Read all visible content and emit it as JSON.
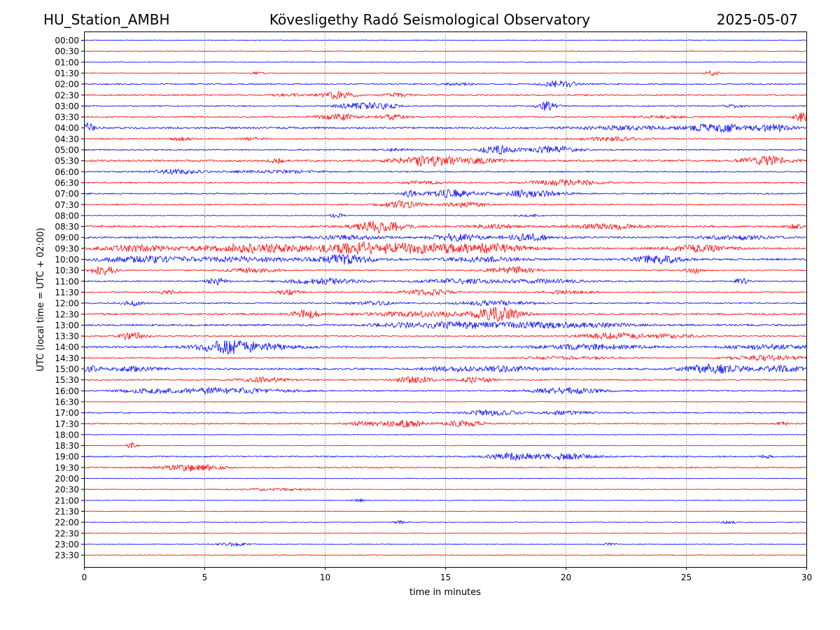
{
  "chart_data": {
    "type": "line",
    "station": "HU_Station_AMBH",
    "title": "Kövesligethy Radó Seismological Observatory",
    "date": "2025-05-07",
    "xlabel": "time in minutes",
    "ylabel": "UTC (local time = UTC + 02:00)",
    "xlim": [
      0,
      30
    ],
    "x_ticks": [
      0,
      5,
      10,
      15,
      20,
      25,
      30
    ],
    "x_tick_labels": [
      "0",
      "5",
      "10",
      "15",
      "20",
      "25",
      "30"
    ],
    "vertical_grid": "dotted at every 5 minutes",
    "trace_colors": [
      "#0000ff",
      "#ff0000"
    ],
    "traces": [
      {
        "label": "00:00",
        "activity": "low",
        "bursts": []
      },
      {
        "label": "00:30",
        "activity": "low",
        "bursts": []
      },
      {
        "label": "01:00",
        "activity": "low",
        "bursts": []
      },
      {
        "label": "01:30",
        "activity": "low",
        "bursts": [
          [
            7.2,
            0.3,
            0.2
          ],
          [
            26.1,
            0.3,
            0.4
          ]
        ]
      },
      {
        "label": "02:00",
        "activity": "medium",
        "bursts": [
          [
            19.8,
            0.7,
            0.6
          ],
          [
            15.5,
            0.6,
            0.2
          ]
        ]
      },
      {
        "label": "02:30",
        "activity": "medium",
        "bursts": [
          [
            10.5,
            0.7,
            0.6
          ],
          [
            13.0,
            0.6,
            0.3
          ],
          [
            8.5,
            0.6,
            0.2
          ]
        ]
      },
      {
        "label": "03:00",
        "activity": "medium",
        "bursts": [
          [
            11.5,
            0.9,
            0.6
          ],
          [
            12.5,
            0.5,
            0.4
          ],
          [
            19.2,
            0.4,
            0.8
          ],
          [
            27.0,
            0.4,
            0.3
          ]
        ]
      },
      {
        "label": "03:30",
        "activity": "medium",
        "bursts": [
          [
            10.5,
            0.8,
            0.6
          ],
          [
            12.8,
            0.6,
            0.4
          ],
          [
            29.8,
            0.3,
            0.9
          ],
          [
            24.0,
            1.0,
            0.2
          ]
        ]
      },
      {
        "label": "04:00",
        "activity": "high",
        "bursts": [
          [
            0.1,
            0.3,
            0.9
          ],
          [
            26.3,
            1.0,
            0.8
          ],
          [
            28.6,
            0.8,
            0.6
          ],
          [
            22.5,
            2.0,
            0.3
          ]
        ]
      },
      {
        "label": "04:30",
        "activity": "medium",
        "bursts": [
          [
            4.0,
            0.4,
            0.3
          ],
          [
            22.0,
            1.5,
            0.3
          ],
          [
            7.0,
            0.5,
            0.2
          ]
        ]
      },
      {
        "label": "05:00",
        "activity": "medium",
        "bursts": [
          [
            17.2,
            0.7,
            0.7
          ],
          [
            19.5,
            1.0,
            0.6
          ],
          [
            13.0,
            0.6,
            0.2
          ]
        ]
      },
      {
        "label": "05:30",
        "activity": "high",
        "bursts": [
          [
            14.3,
            1.3,
            0.9
          ],
          [
            28.3,
            0.9,
            0.8
          ],
          [
            16.5,
            0.8,
            0.4
          ],
          [
            8.0,
            0.3,
            0.4
          ]
        ]
      },
      {
        "label": "06:00",
        "activity": "medium",
        "bursts": [
          [
            3.8,
            1.0,
            0.4
          ],
          [
            8.0,
            2.0,
            0.2
          ]
        ]
      },
      {
        "label": "06:30",
        "activity": "medium",
        "bursts": [
          [
            20.0,
            1.5,
            0.5
          ],
          [
            14.0,
            1.0,
            0.2
          ]
        ]
      },
      {
        "label": "07:00",
        "activity": "medium",
        "bursts": [
          [
            15.3,
            1.0,
            0.7
          ],
          [
            18.5,
            1.3,
            0.6
          ],
          [
            13.5,
            0.3,
            0.6
          ]
        ]
      },
      {
        "label": "07:30",
        "activity": "medium",
        "bursts": [
          [
            13.2,
            0.8,
            0.6
          ],
          [
            15.8,
            0.8,
            0.4
          ]
        ]
      },
      {
        "label": "08:00",
        "activity": "low",
        "bursts": [
          [
            10.5,
            0.3,
            0.4
          ],
          [
            18.5,
            0.6,
            0.2
          ]
        ]
      },
      {
        "label": "08:30",
        "activity": "high",
        "bursts": [
          [
            12.3,
            1.0,
            1.0
          ],
          [
            21.8,
            1.5,
            0.4
          ],
          [
            17.0,
            1.0,
            0.3
          ],
          [
            29.5,
            0.4,
            0.3
          ]
        ]
      },
      {
        "label": "09:00",
        "activity": "high",
        "bursts": [
          [
            15.5,
            1.0,
            0.6
          ],
          [
            18.5,
            0.8,
            0.7
          ],
          [
            11.0,
            1.5,
            0.3
          ],
          [
            27.0,
            1.5,
            0.3
          ]
        ]
      },
      {
        "label": "09:30",
        "activity": "high",
        "bursts": [
          [
            7.0,
            2.5,
            0.7
          ],
          [
            11.5,
            1.5,
            0.6
          ],
          [
            14.0,
            3.0,
            0.8
          ],
          [
            17.0,
            1.5,
            0.5
          ],
          [
            2.0,
            1.5,
            0.5
          ],
          [
            25.5,
            1.2,
            0.6
          ]
        ]
      },
      {
        "label": "10:00",
        "activity": "high",
        "bursts": [
          [
            10.8,
            1.2,
            0.8
          ],
          [
            23.8,
            1.0,
            0.7
          ],
          [
            2.5,
            2.0,
            0.5
          ],
          [
            6.5,
            2.0,
            0.4
          ],
          [
            16.5,
            1.5,
            0.4
          ]
        ]
      },
      {
        "label": "10:30",
        "activity": "medium",
        "bursts": [
          [
            0.8,
            0.5,
            0.8
          ],
          [
            17.8,
            1.0,
            0.6
          ],
          [
            25.3,
            0.3,
            0.6
          ],
          [
            7.0,
            1.0,
            0.4
          ]
        ]
      },
      {
        "label": "11:00",
        "activity": "medium",
        "bursts": [
          [
            5.5,
            0.4,
            0.7
          ],
          [
            10.0,
            1.5,
            0.5
          ],
          [
            15.5,
            1.5,
            0.4
          ],
          [
            27.3,
            0.3,
            0.5
          ],
          [
            19.0,
            2.0,
            0.3
          ]
        ]
      },
      {
        "label": "11:30",
        "activity": "medium",
        "bursts": [
          [
            8.5,
            0.5,
            0.4
          ],
          [
            14.3,
            1.0,
            0.5
          ],
          [
            3.5,
            0.5,
            0.3
          ],
          [
            20.0,
            1.0,
            0.3
          ]
        ]
      },
      {
        "label": "12:00",
        "activity": "medium",
        "bursts": [
          [
            17.0,
            1.5,
            0.4
          ],
          [
            2.0,
            0.4,
            0.4
          ],
          [
            12.0,
            1.0,
            0.3
          ]
        ]
      },
      {
        "label": "12:30",
        "activity": "high",
        "bursts": [
          [
            17.2,
            0.9,
            1.2
          ],
          [
            9.2,
            0.6,
            0.7
          ],
          [
            14.0,
            2.0,
            0.4
          ]
        ]
      },
      {
        "label": "13:00",
        "activity": "high",
        "bursts": [
          [
            15.5,
            1.5,
            0.6
          ],
          [
            18.5,
            1.5,
            0.4
          ],
          [
            21.0,
            2.0,
            0.3
          ],
          [
            13.0,
            1.0,
            0.3
          ]
        ]
      },
      {
        "label": "13:30",
        "activity": "medium",
        "bursts": [
          [
            2.0,
            0.5,
            0.7
          ],
          [
            22.0,
            1.5,
            0.5
          ],
          [
            24.5,
            1.0,
            0.3
          ]
        ]
      },
      {
        "label": "14:00",
        "activity": "high",
        "bursts": [
          [
            6.0,
            1.3,
            1.0
          ],
          [
            7.5,
            1.5,
            0.4
          ],
          [
            21.0,
            2.0,
            0.4
          ],
          [
            28.5,
            1.5,
            0.4
          ]
        ]
      },
      {
        "label": "14:30",
        "activity": "medium",
        "bursts": [
          [
            28.5,
            1.5,
            0.4
          ],
          [
            20.0,
            2.0,
            0.2
          ]
        ]
      },
      {
        "label": "15:00",
        "activity": "high",
        "bursts": [
          [
            26.2,
            1.2,
            0.8
          ],
          [
            0.2,
            0.4,
            0.7
          ],
          [
            15.2,
            1.0,
            0.4
          ],
          [
            17.5,
            1.5,
            0.4
          ],
          [
            2.0,
            1.0,
            0.4
          ],
          [
            29.0,
            1.0,
            0.5
          ]
        ]
      },
      {
        "label": "15:30",
        "activity": "medium",
        "bursts": [
          [
            13.8,
            0.8,
            0.6
          ],
          [
            16.3,
            0.7,
            0.5
          ],
          [
            7.5,
            1.0,
            0.4
          ]
        ]
      },
      {
        "label": "16:00",
        "activity": "medium",
        "bursts": [
          [
            5.8,
            2.5,
            0.5
          ],
          [
            20.0,
            1.5,
            0.5
          ],
          [
            2.5,
            1.0,
            0.3
          ]
        ]
      },
      {
        "label": "16:30",
        "activity": "low",
        "bursts": []
      },
      {
        "label": "17:00",
        "activity": "medium",
        "bursts": [
          [
            17.0,
            1.0,
            0.5
          ],
          [
            20.0,
            1.0,
            0.3
          ]
        ]
      },
      {
        "label": "17:30",
        "activity": "medium",
        "bursts": [
          [
            13.2,
            1.0,
            0.6
          ],
          [
            15.8,
            0.8,
            0.5
          ],
          [
            11.5,
            0.6,
            0.3
          ],
          [
            29.0,
            0.2,
            0.4
          ]
        ]
      },
      {
        "label": "18:00",
        "activity": "low",
        "bursts": []
      },
      {
        "label": "18:30",
        "activity": "low",
        "bursts": [
          [
            2.0,
            0.2,
            0.6
          ]
        ]
      },
      {
        "label": "19:00",
        "activity": "medium",
        "bursts": [
          [
            17.8,
            1.0,
            0.6
          ],
          [
            20.0,
            1.2,
            0.5
          ],
          [
            28.3,
            0.2,
            0.4
          ]
        ]
      },
      {
        "label": "19:30",
        "activity": "medium",
        "bursts": [
          [
            4.5,
            1.2,
            0.6
          ]
        ]
      },
      {
        "label": "20:00",
        "activity": "low",
        "bursts": []
      },
      {
        "label": "20:30",
        "activity": "low",
        "bursts": [
          [
            8.0,
            1.5,
            0.2
          ]
        ]
      },
      {
        "label": "21:00",
        "activity": "low",
        "bursts": [
          [
            11.4,
            0.2,
            0.4
          ]
        ]
      },
      {
        "label": "21:30",
        "activity": "low",
        "bursts": []
      },
      {
        "label": "22:00",
        "activity": "low",
        "bursts": [
          [
            13.1,
            0.2,
            0.3
          ],
          [
            26.8,
            0.3,
            0.3
          ]
        ]
      },
      {
        "label": "22:30",
        "activity": "low",
        "bursts": []
      },
      {
        "label": "23:00",
        "activity": "low",
        "bursts": [
          [
            6.2,
            0.6,
            0.3
          ],
          [
            21.8,
            0.3,
            0.2
          ]
        ]
      },
      {
        "label": "23:30",
        "activity": "low",
        "bursts": []
      }
    ]
  }
}
